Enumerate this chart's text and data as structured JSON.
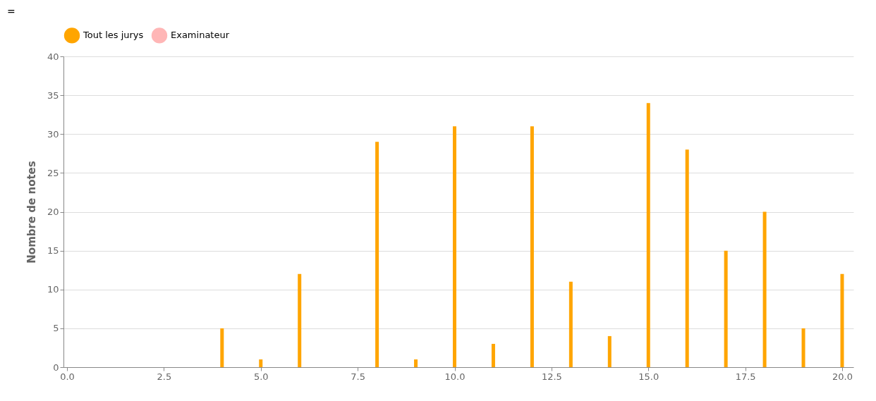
{
  "chart_data": {
    "type": "bar",
    "ylabel": "Nombre de notes",
    "x": [
      4,
      5,
      6,
      8,
      9,
      10,
      11,
      12,
      13,
      14,
      15,
      16,
      17,
      18,
      19,
      20
    ],
    "series": [
      {
        "name": "Tout les jurys",
        "color": "#ffa500",
        "values": [
          5,
          1,
          12,
          29,
          1,
          31,
          3,
          31,
          11,
          4,
          34,
          28,
          15,
          20,
          5,
          12
        ]
      },
      {
        "name": "Examinateur",
        "color": "#ffb6b6",
        "values": [
          null,
          null,
          null,
          null,
          null,
          null,
          null,
          null,
          null,
          null,
          null,
          null,
          null,
          null,
          null,
          null
        ]
      }
    ],
    "xlim": [
      0,
      20.2
    ],
    "xticks": [
      {
        "value": 0,
        "label": "0.0"
      },
      2.5,
      {
        "value": 5,
        "label": "5.0"
      },
      7.5,
      {
        "value": 10,
        "label": "10.0"
      },
      12.5,
      {
        "value": 15,
        "label": "15.0"
      },
      17.5,
      {
        "value": 20,
        "label": "20.0"
      }
    ],
    "ylim": [
      0,
      40
    ],
    "yticks": [
      0,
      5,
      10,
      15,
      20,
      25,
      30,
      35,
      40
    ],
    "grid": "y",
    "legend": "top",
    "annotations": [
      "="
    ]
  }
}
